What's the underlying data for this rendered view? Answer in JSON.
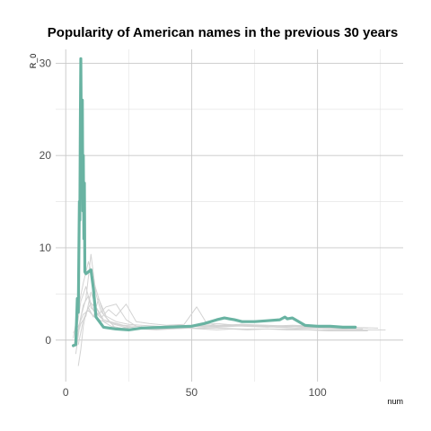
{
  "chart_data": {
    "type": "line",
    "title": "Popularity of American names in the previous 30 years",
    "xlabel": "num",
    "ylabel": "R_0",
    "xlim": [
      -4,
      134
    ],
    "ylim": [
      -4.5,
      31.5
    ],
    "x_ticks": [
      0,
      50,
      100
    ],
    "x_tick_labels": [
      "0",
      "50",
      "100"
    ],
    "y_ticks": [
      0,
      10,
      20,
      30
    ],
    "y_tick_labels": [
      "0",
      "10",
      "20",
      "30"
    ],
    "grid": true,
    "legend": "none",
    "colors": {
      "highlight": "#69b3a2",
      "background": "#d3d3d3"
    },
    "highlight_series": {
      "x": [
        3,
        4,
        4.6,
        5,
        5.2,
        5.4,
        5.6,
        5.8,
        6,
        6.2,
        6.4,
        6.6,
        6.8,
        7,
        7.2,
        7.4,
        7.6,
        8,
        9,
        10,
        11,
        12,
        15,
        20,
        25,
        30,
        40,
        50,
        55,
        60,
        63,
        67,
        70,
        75,
        80,
        85,
        87,
        88,
        90,
        95,
        100,
        105,
        110,
        115
      ],
      "y": [
        -0.6,
        -0.5,
        4.5,
        3,
        9,
        15,
        13,
        24,
        30.5,
        22,
        16,
        26,
        14,
        20,
        11,
        17,
        7.4,
        7.2,
        7.4,
        7.6,
        5.5,
        2.5,
        1.4,
        1.2,
        1.1,
        1.3,
        1.4,
        1.5,
        1.8,
        2.2,
        2.4,
        2.2,
        2,
        2,
        2.1,
        2.2,
        2.5,
        2.3,
        2.4,
        1.6,
        1.5,
        1.5,
        1.4,
        1.4
      ]
    },
    "background_series": [
      {
        "x": [
          3,
          5,
          7,
          9,
          12,
          15,
          20,
          25,
          30,
          40,
          50,
          60,
          70,
          80,
          90,
          100,
          110,
          120
        ],
        "y": [
          0.2,
          3.5,
          6.2,
          8.5,
          5.5,
          2.8,
          1.2,
          1.4,
          1.3,
          1.5,
          1.6,
          1.5,
          1.7,
          1.6,
          1.5,
          1.5,
          1.4,
          1.3
        ]
      },
      {
        "x": [
          4,
          6,
          8,
          10,
          12,
          14,
          18,
          22,
          26,
          30,
          40,
          50,
          60,
          70,
          80,
          90,
          100,
          110,
          118
        ],
        "y": [
          -1.5,
          2.5,
          4.5,
          9.3,
          5,
          3.1,
          1.8,
          1.5,
          1.2,
          1.3,
          1.4,
          1.5,
          1.6,
          1.5,
          1.4,
          1.5,
          1.3,
          1.2,
          1.2
        ]
      },
      {
        "x": [
          5,
          6,
          7,
          8,
          10,
          12,
          15,
          18,
          22,
          26,
          30,
          40,
          50,
          60,
          70,
          80,
          90,
          100,
          115,
          127
        ],
        "y": [
          -2.8,
          -1,
          1.5,
          3,
          4,
          3.5,
          2,
          1.5,
          1.3,
          1.2,
          1.2,
          1.2,
          1.3,
          1.3,
          1.2,
          1.2,
          1.2,
          1.1,
          1.1,
          1.1
        ]
      },
      {
        "x": [
          4,
          6,
          8,
          10,
          13,
          16,
          20,
          24,
          28,
          35,
          45,
          55,
          65,
          75,
          85,
          95,
          105,
          114
        ],
        "y": [
          0.5,
          4.2,
          5.8,
          3.5,
          2.8,
          3.6,
          3.9,
          2.2,
          1.5,
          1.3,
          1.6,
          1.4,
          1.5,
          1.6,
          1.4,
          1.3,
          1.3,
          1.4
        ]
      },
      {
        "x": [
          3,
          5,
          7,
          9,
          11,
          14,
          17,
          20,
          24,
          28,
          33,
          40,
          47,
          52,
          56,
          60,
          70,
          80,
          90,
          100,
          110,
          124
        ],
        "y": [
          -0.8,
          1.2,
          3.8,
          4.8,
          3.2,
          2.4,
          3.3,
          2.6,
          3.9,
          2,
          1.8,
          1.6,
          1.7,
          3.6,
          1.8,
          1.6,
          1.7,
          1.5,
          1.6,
          1.5,
          1.4,
          1.3
        ]
      },
      {
        "x": [
          4,
          6,
          8,
          10,
          12,
          15,
          19,
          23,
          27,
          32,
          38,
          45,
          52,
          60,
          68,
          76,
          84,
          92,
          100,
          112
        ],
        "y": [
          -0.2,
          1.8,
          2.6,
          5.2,
          3.6,
          2.2,
          1.9,
          1.6,
          1.5,
          1.4,
          1.3,
          1.4,
          1.5,
          1.4,
          1.5,
          1.6,
          1.4,
          1.3,
          1.3,
          1.2
        ]
      },
      {
        "x": [
          5,
          7,
          9,
          11,
          13,
          16,
          20,
          25,
          30,
          36,
          44,
          52,
          60,
          68,
          76,
          84,
          92,
          100,
          108
        ],
        "y": [
          -0.5,
          2.2,
          3.5,
          2.5,
          4.5,
          2.6,
          2,
          1.7,
          1.6,
          1.5,
          1.4,
          1.6,
          1.8,
          1.6,
          1.5,
          1.4,
          1.5,
          1.4,
          1.3
        ]
      },
      {
        "x": [
          3,
          5,
          7,
          9,
          11,
          14,
          18,
          22,
          26,
          30,
          36,
          42,
          48,
          54,
          60,
          66,
          72,
          80,
          88,
          96,
          104,
          112,
          120
        ],
        "y": [
          0.8,
          1.5,
          2.8,
          3.2,
          2.6,
          2.1,
          1.9,
          1.6,
          1.4,
          1.2,
          1.1,
          1.2,
          1.3,
          1.2,
          1.1,
          1.2,
          1.1,
          1.2,
          1.1,
          1.1,
          1.0,
          1.0,
          1.0
        ]
      }
    ]
  }
}
